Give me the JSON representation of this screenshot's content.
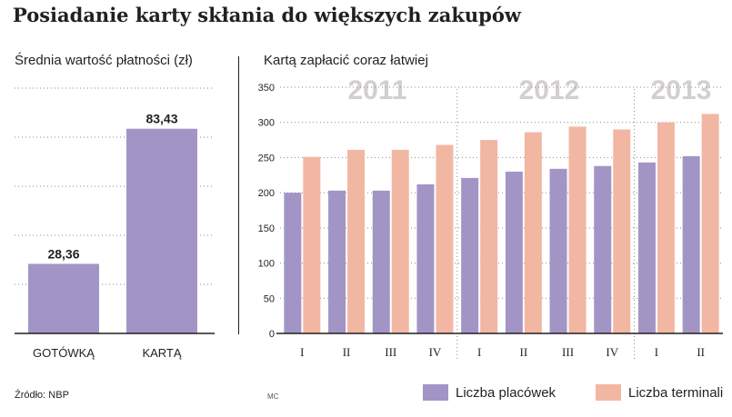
{
  "title": "Posiadanie karty skłania do większych zakupów",
  "source": "Źródło: NBP",
  "credit": "MC",
  "colors": {
    "purple": "#a295c6",
    "salmon": "#f2b7a3",
    "dark": "#231f20",
    "grid": "#8a8a8a",
    "year": "#d3cfcf"
  },
  "chart_data": [
    {
      "type": "bar",
      "title": "Średnia wartość płatności (zł)",
      "categories": [
        "GOTÓWKĄ",
        "KARTĄ"
      ],
      "values": [
        28.36,
        83.43
      ],
      "value_labels": [
        "28,36",
        "83,43"
      ],
      "ylim": [
        0,
        100
      ],
      "grid": true
    },
    {
      "type": "bar",
      "title": "Kartą zapłacić coraz łatwiej",
      "categories": [
        "I",
        "II",
        "III",
        "IV",
        "I",
        "II",
        "III",
        "IV",
        "I",
        "II"
      ],
      "years": [
        "2011",
        "2012",
        "2013"
      ],
      "ylim": [
        0,
        350
      ],
      "yticks": [
        0,
        50,
        100,
        150,
        200,
        250,
        300,
        350
      ],
      "grid": true,
      "legend_position": "bottom",
      "series": [
        {
          "name": "Liczba placówek",
          "color": "#a295c6",
          "values": [
            200,
            203,
            203,
            212,
            221,
            230,
            234,
            238,
            243,
            252
          ]
        },
        {
          "name": "Liczba terminali",
          "color": "#f2b7a3",
          "values": [
            251,
            261,
            261,
            268,
            275,
            286,
            294,
            290,
            300,
            312
          ]
        }
      ]
    }
  ]
}
